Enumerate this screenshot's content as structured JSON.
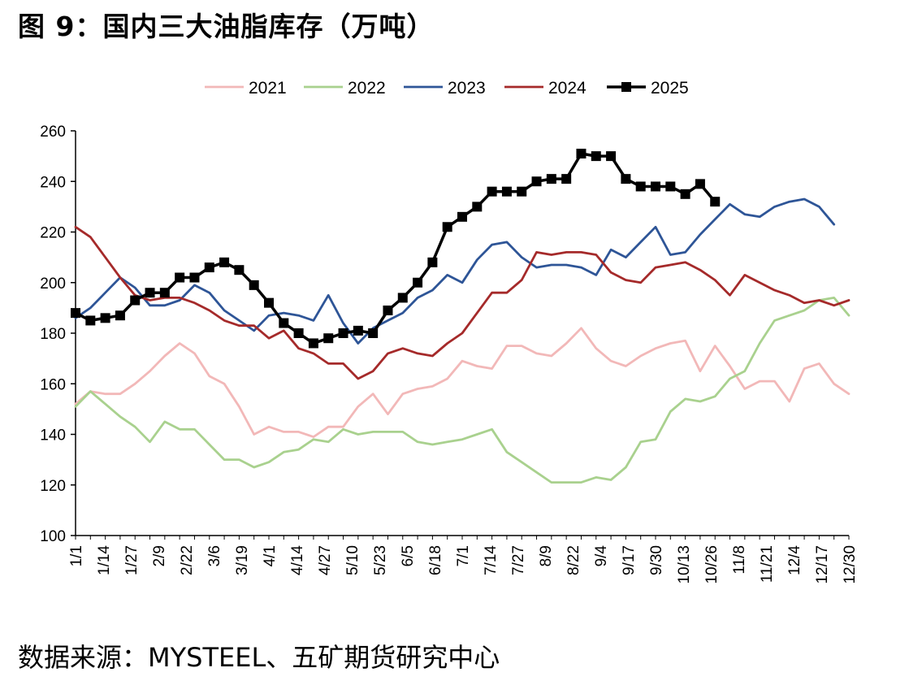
{
  "figure_title": "图 9：国内三大油脂库存（万吨）",
  "source_note": "数据来源：MYSTEEL、五矿期货研究中心",
  "chart_data": {
    "type": "line",
    "title": "图 9：国内三大油脂库存（万吨）",
    "xlabel": "",
    "ylabel": "",
    "ylim": [
      100,
      260
    ],
    "yticks": [
      100,
      120,
      140,
      160,
      180,
      200,
      220,
      240,
      260
    ],
    "x_ticks": [
      "1/1",
      "1/14",
      "1/27",
      "2/9",
      "2/22",
      "3/6",
      "3/19",
      "4/1",
      "4/14",
      "4/27",
      "5/10",
      "5/23",
      "6/5",
      "6/18",
      "7/1",
      "7/14",
      "7/27",
      "8/9",
      "8/22",
      "9/4",
      "9/17",
      "9/30",
      "10/13",
      "10/26",
      "11/8",
      "11/21",
      "12/4",
      "12/17",
      "12/30"
    ],
    "grid": false,
    "legend_position": "top",
    "series": [
      {
        "name": "2021",
        "color": "#f2b8b8",
        "marker": "none",
        "values": [
          152,
          157,
          156,
          156,
          160,
          165,
          171,
          176,
          172,
          163,
          160,
          151,
          140,
          143,
          141,
          141,
          139,
          143,
          143,
          151,
          156,
          148,
          156,
          158,
          159,
          162,
          169,
          167,
          166,
          175,
          175,
          172,
          171,
          176,
          182,
          174,
          169,
          167,
          171,
          174,
          176,
          177,
          165,
          175,
          167,
          158,
          161,
          161,
          153,
          166,
          168,
          160,
          156
        ]
      },
      {
        "name": "2022",
        "color": "#a9d18e",
        "marker": "none",
        "values": [
          151,
          157,
          152,
          147,
          143,
          137,
          145,
          142,
          142,
          136,
          130,
          130,
          127,
          129,
          133,
          134,
          138,
          137,
          142,
          140,
          141,
          141,
          141,
          137,
          136,
          137,
          138,
          140,
          142,
          133,
          129,
          125,
          121,
          121,
          121,
          123,
          122,
          127,
          137,
          138,
          149,
          154,
          153,
          155,
          162,
          165,
          176,
          185,
          187,
          189,
          193,
          194,
          187
        ]
      },
      {
        "name": "2023",
        "color": "#2e5597",
        "marker": "none",
        "values": [
          186,
          190,
          196,
          202,
          198,
          191,
          191,
          193,
          199,
          196,
          189,
          185,
          181,
          187,
          188,
          187,
          185,
          195,
          184,
          176,
          182,
          185,
          188,
          194,
          197,
          203,
          200,
          209,
          215,
          216,
          210,
          206,
          207,
          207,
          206,
          203,
          213,
          210,
          216,
          222,
          211,
          212,
          219,
          225,
          231,
          227,
          226,
          230,
          232,
          233,
          230,
          223
        ]
      },
      {
        "name": "2024",
        "color": "#a52a2a",
        "marker": "none",
        "values": [
          222,
          218,
          210,
          202,
          195,
          193,
          194,
          194,
          192,
          189,
          185,
          183,
          183,
          178,
          181,
          174,
          172,
          168,
          168,
          162,
          165,
          172,
          174,
          172,
          171,
          176,
          180,
          188,
          196,
          196,
          201,
          212,
          211,
          212,
          212,
          211,
          204,
          201,
          200,
          206,
          207,
          208,
          205,
          201,
          195,
          203,
          200,
          197,
          195,
          192,
          193,
          191,
          193
        ]
      },
      {
        "name": "2025",
        "color": "#000000",
        "marker": "square",
        "values": [
          188,
          185,
          186,
          187,
          193,
          196,
          196,
          202,
          202,
          206,
          208,
          205,
          199,
          192,
          184,
          180,
          176,
          178,
          180,
          181,
          180,
          189,
          194,
          200,
          208,
          222,
          226,
          230,
          236,
          236,
          236,
          240,
          241,
          241,
          251,
          250,
          250,
          241,
          238,
          238,
          238,
          235,
          239,
          232
        ]
      }
    ]
  }
}
